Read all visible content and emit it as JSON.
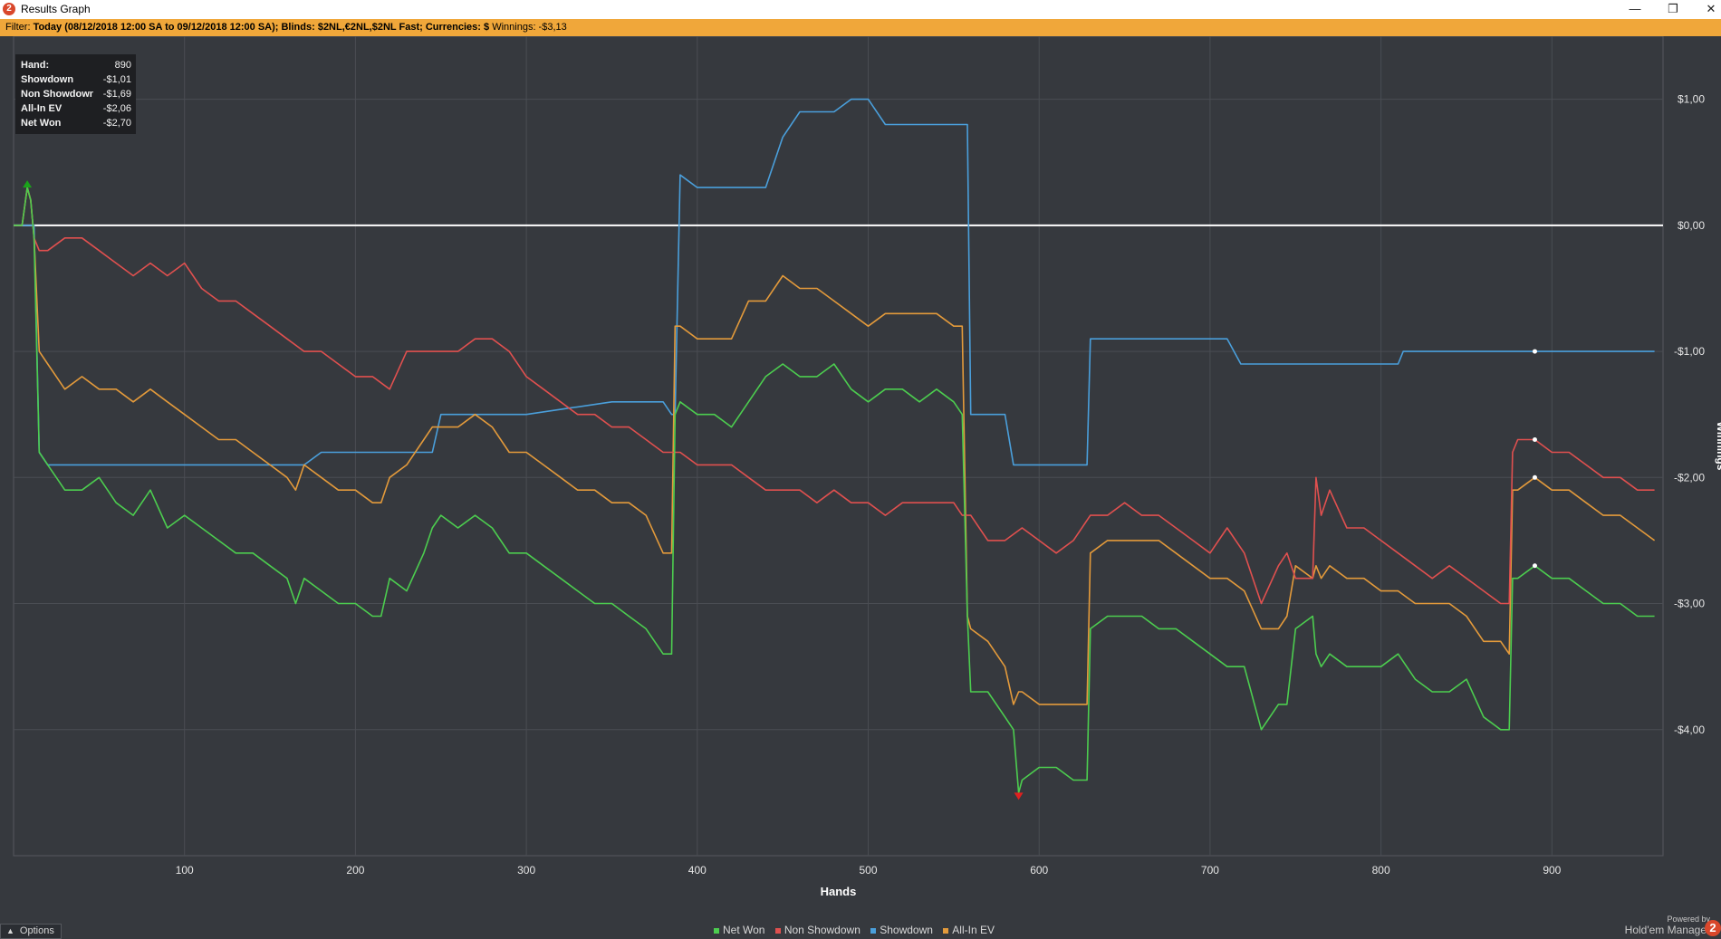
{
  "window": {
    "title": "Results Graph",
    "icon_name": "holdem-manager-icon"
  },
  "window_controls": [
    "minimize-icon",
    "restore-icon",
    "close-icon"
  ],
  "filter": {
    "label": "Filter:",
    "value": "Today (08/12/2018 12:00 SA to 09/12/2018 12:00 SA); Blinds: $2NL,€2NL,$2NL Fast; Currencies: $",
    "winnings": "Winnings: -$3,13"
  },
  "info_box": [
    {
      "key": "Hand:",
      "value": "890"
    },
    {
      "key": "Showdown",
      "value": "-$1,01"
    },
    {
      "key": "Non Showdown",
      "value": "-$1,69"
    },
    {
      "key": "All-In EV",
      "value": "-$2,06"
    },
    {
      "key": "Net Won",
      "value": "-$2,70"
    }
  ],
  "options_button": "Options",
  "brand": {
    "powered": "Powered by",
    "name": "Hold'em Manager",
    "logo": "2"
  },
  "colors": {
    "net_won": "#4ccd4f",
    "non_showdown": "#e0504f",
    "showdown": "#4a9fdb",
    "all_in_ev": "#e39a3b",
    "zero_line": "#ffffff",
    "background": "#36393e",
    "grid": "#4a4d53",
    "filter_bar": "#f0a73a"
  },
  "chart_data": {
    "type": "line",
    "xlabel": "Hands",
    "ylabel": "Winnings",
    "xlim": [
      0,
      965
    ],
    "ylim": [
      -5.0,
      1.5
    ],
    "x_ticks": [
      100,
      200,
      300,
      400,
      500,
      600,
      700,
      800,
      900
    ],
    "x_tick_labels": [
      "100",
      "200",
      "300",
      "400",
      "500",
      "600",
      "700",
      "800",
      "900"
    ],
    "y_ticks": [
      1,
      0,
      -1,
      -2,
      -3,
      -4
    ],
    "y_tick_labels": [
      "$1,00",
      "$0,00",
      "-$1,00",
      "-$2,00",
      "-$3,00",
      "-$4,00"
    ],
    "grid": true,
    "legend_position": "bottom",
    "series": [
      {
        "name": "Net Won",
        "x": [
          0,
          5,
          8,
          10,
          12,
          15,
          20,
          25,
          30,
          40,
          50,
          60,
          70,
          80,
          90,
          100,
          110,
          120,
          130,
          140,
          150,
          160,
          165,
          170,
          180,
          190,
          200,
          210,
          215,
          220,
          230,
          240,
          245,
          250,
          260,
          270,
          280,
          290,
          300,
          310,
          320,
          330,
          340,
          350,
          360,
          370,
          380,
          385,
          387,
          390,
          400,
          410,
          420,
          430,
          440,
          450,
          460,
          470,
          480,
          490,
          500,
          510,
          520,
          530,
          540,
          550,
          555,
          558,
          560,
          570,
          580,
          585,
          588,
          590,
          600,
          610,
          620,
          628,
          630,
          640,
          650,
          660,
          670,
          680,
          690,
          700,
          710,
          720,
          730,
          740,
          745,
          750,
          760,
          762,
          765,
          770,
          780,
          790,
          800,
          810,
          820,
          830,
          840,
          850,
          860,
          870,
          875,
          877,
          880,
          890,
          900,
          910,
          920,
          930,
          940,
          950,
          960
        ],
        "y": [
          0,
          0,
          0.3,
          0.2,
          -0.1,
          -1.8,
          -1.9,
          -2.0,
          -2.1,
          -2.1,
          -2.0,
          -2.2,
          -2.3,
          -2.1,
          -2.4,
          -2.3,
          -2.4,
          -2.5,
          -2.6,
          -2.6,
          -2.7,
          -2.8,
          -3.0,
          -2.8,
          -2.9,
          -3.0,
          -3.0,
          -3.1,
          -3.1,
          -2.8,
          -2.9,
          -2.6,
          -2.4,
          -2.3,
          -2.4,
          -2.3,
          -2.4,
          -2.6,
          -2.6,
          -2.7,
          -2.8,
          -2.9,
          -3.0,
          -3.0,
          -3.1,
          -3.2,
          -3.4,
          -3.4,
          -1.5,
          -1.4,
          -1.5,
          -1.5,
          -1.6,
          -1.4,
          -1.2,
          -1.1,
          -1.2,
          -1.2,
          -1.1,
          -1.3,
          -1.4,
          -1.3,
          -1.3,
          -1.4,
          -1.3,
          -1.4,
          -1.5,
          -3.1,
          -3.7,
          -3.7,
          -3.9,
          -4.0,
          -4.5,
          -4.4,
          -4.3,
          -4.3,
          -4.4,
          -4.4,
          -3.2,
          -3.1,
          -3.1,
          -3.1,
          -3.2,
          -3.2,
          -3.3,
          -3.4,
          -3.5,
          -3.5,
          -4.0,
          -3.8,
          -3.8,
          -3.2,
          -3.1,
          -3.4,
          -3.5,
          -3.4,
          -3.5,
          -3.5,
          -3.5,
          -3.4,
          -3.6,
          -3.7,
          -3.7,
          -3.6,
          -3.9,
          -4.0,
          -4.0,
          -2.8,
          -2.8,
          -2.7,
          -2.8,
          -2.8,
          -2.9,
          -3.0,
          -3.0,
          -3.1,
          -3.1
        ]
      },
      {
        "name": "Non Showdown",
        "x": [
          0,
          5,
          8,
          10,
          12,
          15,
          20,
          30,
          40,
          50,
          60,
          70,
          80,
          90,
          100,
          110,
          120,
          130,
          140,
          150,
          160,
          170,
          180,
          190,
          200,
          210,
          220,
          230,
          240,
          250,
          260,
          270,
          280,
          290,
          300,
          310,
          320,
          330,
          340,
          350,
          360,
          370,
          380,
          385,
          387,
          390,
          400,
          410,
          420,
          430,
          440,
          450,
          460,
          470,
          480,
          490,
          500,
          510,
          520,
          530,
          540,
          550,
          555,
          560,
          570,
          580,
          590,
          600,
          610,
          620,
          630,
          640,
          650,
          660,
          670,
          680,
          690,
          700,
          710,
          720,
          730,
          740,
          745,
          750,
          760,
          762,
          765,
          770,
          780,
          790,
          800,
          810,
          820,
          830,
          840,
          850,
          860,
          870,
          875,
          877,
          880,
          890,
          900,
          910,
          920,
          930,
          940,
          950,
          960
        ],
        "y": [
          0,
          0,
          0.3,
          0.2,
          -0.1,
          -0.2,
          -0.2,
          -0.1,
          -0.1,
          -0.2,
          -0.3,
          -0.4,
          -0.3,
          -0.4,
          -0.3,
          -0.5,
          -0.6,
          -0.6,
          -0.7,
          -0.8,
          -0.9,
          -1.0,
          -1.0,
          -1.1,
          -1.2,
          -1.2,
          -1.3,
          -1.0,
          -1.0,
          -1.0,
          -1.0,
          -0.9,
          -0.9,
          -1.0,
          -1.2,
          -1.3,
          -1.4,
          -1.5,
          -1.5,
          -1.6,
          -1.6,
          -1.7,
          -1.8,
          -1.8,
          -1.8,
          -1.8,
          -1.9,
          -1.9,
          -1.9,
          -2.0,
          -2.1,
          -2.1,
          -2.1,
          -2.2,
          -2.1,
          -2.2,
          -2.2,
          -2.3,
          -2.2,
          -2.2,
          -2.2,
          -2.2,
          -2.3,
          -2.3,
          -2.5,
          -2.5,
          -2.4,
          -2.5,
          -2.6,
          -2.5,
          -2.3,
          -2.3,
          -2.2,
          -2.3,
          -2.3,
          -2.4,
          -2.5,
          -2.6,
          -2.4,
          -2.6,
          -3.0,
          -2.7,
          -2.6,
          -2.8,
          -2.8,
          -2.0,
          -2.3,
          -2.1,
          -2.4,
          -2.4,
          -2.5,
          -2.6,
          -2.7,
          -2.8,
          -2.7,
          -2.8,
          -2.9,
          -3.0,
          -3.0,
          -1.8,
          -1.7,
          -1.7,
          -1.8,
          -1.8,
          -1.9,
          -2.0,
          -2.0,
          -2.1,
          -2.1
        ]
      },
      {
        "name": "Showdown",
        "x": [
          0,
          5,
          8,
          10,
          12,
          15,
          20,
          30,
          40,
          100,
          150,
          165,
          170,
          180,
          230,
          240,
          245,
          250,
          300,
          350,
          370,
          380,
          385,
          387,
          390,
          400,
          410,
          420,
          430,
          440,
          450,
          460,
          470,
          480,
          490,
          495,
          500,
          510,
          520,
          530,
          540,
          550,
          555,
          558,
          560,
          570,
          580,
          585,
          590,
          600,
          610,
          620,
          628,
          630,
          640,
          650,
          660,
          670,
          680,
          690,
          700,
          710,
          718,
          720,
          730,
          740,
          750,
          760,
          770,
          780,
          790,
          800,
          810,
          813,
          815,
          820,
          840,
          860,
          880,
          900,
          920,
          940,
          960
        ],
        "y": [
          0,
          0,
          0,
          0,
          0,
          -1.8,
          -1.9,
          -1.9,
          -1.9,
          -1.9,
          -1.9,
          -1.9,
          -1.9,
          -1.8,
          -1.8,
          -1.8,
          -1.8,
          -1.5,
          -1.5,
          -1.4,
          -1.4,
          -1.4,
          -1.5,
          -1.5,
          0.4,
          0.3,
          0.3,
          0.3,
          0.3,
          0.3,
          0.7,
          0.9,
          0.9,
          0.9,
          1.0,
          1.0,
          1.0,
          0.8,
          0.8,
          0.8,
          0.8,
          0.8,
          0.8,
          0.8,
          -1.5,
          -1.5,
          -1.5,
          -1.9,
          -1.9,
          -1.9,
          -1.9,
          -1.9,
          -1.9,
          -0.9,
          -0.9,
          -0.9,
          -0.9,
          -0.9,
          -0.9,
          -0.9,
          -0.9,
          -0.9,
          -1.1,
          -1.1,
          -1.1,
          -1.1,
          -1.1,
          -1.1,
          -1.1,
          -1.1,
          -1.1,
          -1.1,
          -1.1,
          -1.0,
          -1.0,
          -1.0,
          -1.0,
          -1.0,
          -1.0,
          -1.0,
          -1.0,
          -1.0,
          -1.0
        ]
      },
      {
        "name": "All-In EV",
        "x": [
          0,
          5,
          8,
          10,
          12,
          15,
          20,
          25,
          30,
          40,
          50,
          60,
          70,
          80,
          90,
          100,
          110,
          120,
          130,
          140,
          150,
          160,
          165,
          170,
          180,
          190,
          200,
          210,
          215,
          220,
          230,
          240,
          245,
          250,
          260,
          270,
          280,
          290,
          300,
          310,
          320,
          330,
          340,
          350,
          360,
          370,
          380,
          385,
          387,
          390,
          400,
          410,
          420,
          430,
          440,
          450,
          460,
          470,
          480,
          490,
          500,
          510,
          520,
          530,
          540,
          550,
          555,
          558,
          560,
          570,
          580,
          585,
          588,
          590,
          600,
          610,
          620,
          628,
          630,
          640,
          650,
          660,
          670,
          680,
          690,
          700,
          710,
          720,
          730,
          740,
          745,
          750,
          760,
          762,
          765,
          770,
          780,
          790,
          800,
          810,
          820,
          830,
          840,
          850,
          860,
          870,
          875,
          877,
          880,
          890,
          900,
          910,
          920,
          930,
          940,
          950,
          960
        ],
        "y": [
          0,
          0,
          0.3,
          0.2,
          -0.1,
          -1.0,
          -1.1,
          -1.2,
          -1.3,
          -1.2,
          -1.3,
          -1.3,
          -1.4,
          -1.3,
          -1.4,
          -1.5,
          -1.6,
          -1.7,
          -1.7,
          -1.8,
          -1.9,
          -2.0,
          -2.1,
          -1.9,
          -2.0,
          -2.1,
          -2.1,
          -2.2,
          -2.2,
          -2.0,
          -1.9,
          -1.7,
          -1.6,
          -1.6,
          -1.6,
          -1.5,
          -1.6,
          -1.8,
          -1.8,
          -1.9,
          -2.0,
          -2.1,
          -2.1,
          -2.2,
          -2.2,
          -2.3,
          -2.6,
          -2.6,
          -0.8,
          -0.8,
          -0.9,
          -0.9,
          -0.9,
          -0.6,
          -0.6,
          -0.4,
          -0.5,
          -0.5,
          -0.6,
          -0.7,
          -0.8,
          -0.7,
          -0.7,
          -0.7,
          -0.7,
          -0.8,
          -0.8,
          -3.1,
          -3.2,
          -3.3,
          -3.5,
          -3.8,
          -3.7,
          -3.7,
          -3.8,
          -3.8,
          -3.8,
          -3.8,
          -2.6,
          -2.5,
          -2.5,
          -2.5,
          -2.5,
          -2.6,
          -2.7,
          -2.8,
          -2.8,
          -2.9,
          -3.2,
          -3.2,
          -3.1,
          -2.7,
          -2.8,
          -2.7,
          -2.8,
          -2.7,
          -2.8,
          -2.8,
          -2.9,
          -2.9,
          -3.0,
          -3.0,
          -3.0,
          -3.1,
          -3.3,
          -3.3,
          -3.4,
          -2.1,
          -2.1,
          -2.0,
          -2.1,
          -2.1,
          -2.2,
          -2.3,
          -2.3,
          -2.4,
          -2.5
        ]
      }
    ]
  }
}
